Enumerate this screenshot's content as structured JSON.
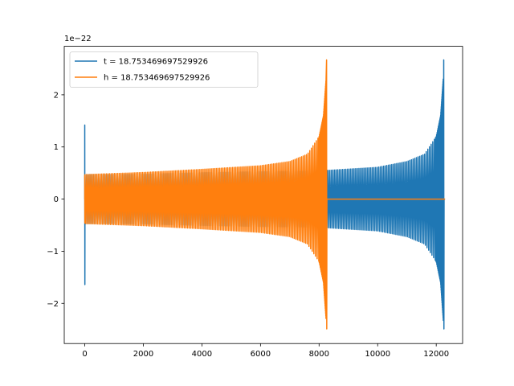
{
  "chart_data": {
    "type": "line",
    "title": "",
    "xlabel": "",
    "ylabel": "",
    "y_offset_label": "1e−22",
    "xlim": [
      -700,
      12900
    ],
    "ylim": [
      -2.77,
      2.93
    ],
    "y_scale": 1e-22,
    "xticks": [
      0,
      2000,
      4000,
      6000,
      8000,
      10000,
      12000
    ],
    "xtick_labels": [
      "0",
      "2000",
      "4000",
      "6000",
      "8000",
      "10000",
      "12000"
    ],
    "yticks": [
      -2,
      -1,
      0,
      1,
      2
    ],
    "ytick_labels": [
      "−2",
      "−1",
      "0",
      "1",
      "2"
    ],
    "grid": false,
    "legend_position": "upper-left",
    "series": [
      {
        "name": "t = 18.753469697529926",
        "color": "#1f77b4",
        "x_start": 0,
        "x_end": 12300,
        "merger_x": 12262,
        "start_amplitude_peak": [
          1.42,
          -1.64
        ],
        "inspiral_envelope": {
          "x": [
            0,
            2000,
            4000,
            6000,
            8000,
            10000,
            11000,
            11600,
            12000,
            12150,
            12250
          ],
          "amplitude": [
            0.47,
            0.48,
            0.51,
            0.53,
            0.54,
            0.61,
            0.72,
            0.86,
            1.2,
            1.6,
            2.4
          ]
        },
        "merger_peak": [
          2.67,
          -2.49
        ],
        "ringdown_level": 0
      },
      {
        "name": "h = 18.753469697529926",
        "color": "#ff7f0e",
        "x_start": 0,
        "x_end": 12300,
        "merger_x": 8262,
        "start_amplitude_peak": [
          0.45,
          -0.46
        ],
        "inspiral_envelope": {
          "x": [
            0,
            2000,
            4000,
            6000,
            7000,
            7600,
            8000,
            8150,
            8250
          ],
          "amplitude": [
            0.47,
            0.51,
            0.57,
            0.64,
            0.72,
            0.86,
            1.2,
            1.6,
            2.4
          ]
        },
        "merger_peak": [
          2.67,
          -2.49
        ],
        "ringdown_level": 0
      }
    ]
  }
}
